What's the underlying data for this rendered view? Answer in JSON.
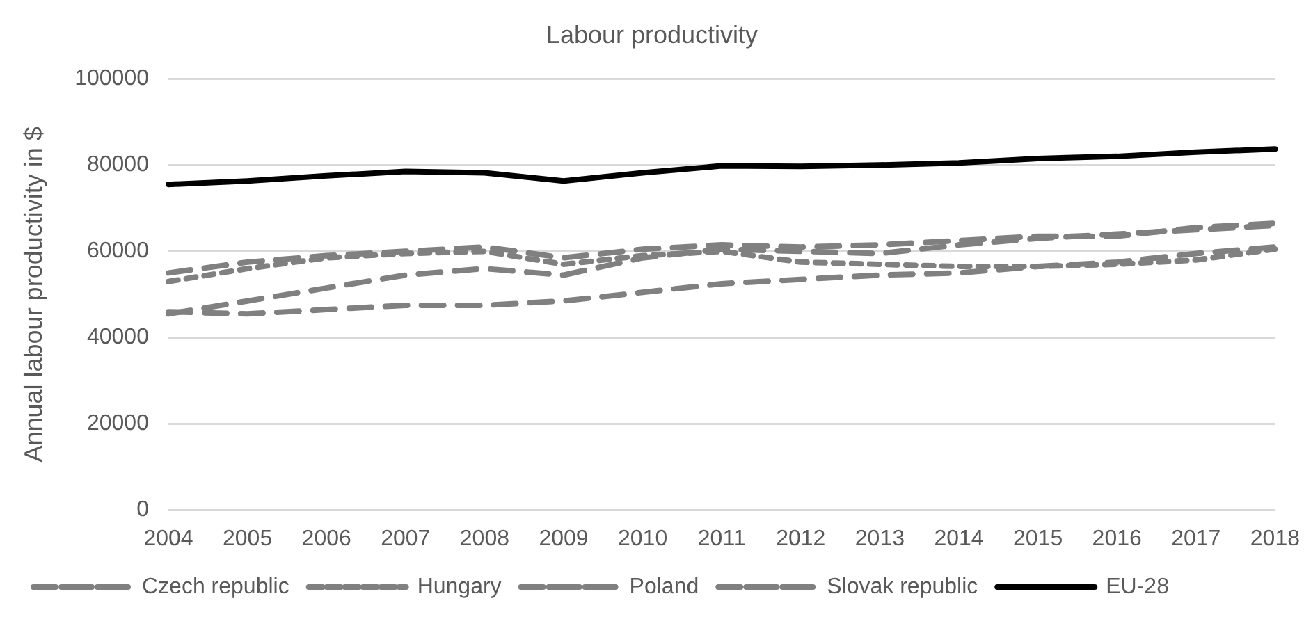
{
  "chart_data": {
    "type": "line",
    "title": "Labour productivity",
    "ylabel": "Annual labour productivity in $",
    "categories": [
      "2004",
      "2005",
      "2006",
      "2007",
      "2008",
      "2009",
      "2010",
      "2011",
      "2012",
      "2013",
      "2014",
      "2015",
      "2016",
      "2017",
      "2018"
    ],
    "series": [
      {
        "name": "Czech republic",
        "color": "#808080",
        "line_style": "dashed",
        "values": [
          55000,
          57500,
          59000,
          60000,
          61000,
          58500,
          60500,
          61500,
          61000,
          61500,
          62500,
          63500,
          63500,
          65500,
          66500
        ]
      },
      {
        "name": "Hungary",
        "color": "#808080",
        "line_style": "dotted",
        "values": [
          53000,
          56000,
          58500,
          59500,
          60000,
          57000,
          59000,
          60000,
          57500,
          57000,
          56500,
          56500,
          57000,
          58000,
          60500
        ]
      },
      {
        "name": "Poland",
        "color": "#808080",
        "line_style": "dashed",
        "values": [
          46000,
          45500,
          46500,
          47500,
          47500,
          48500,
          50500,
          52500,
          53500,
          54500,
          55000,
          56500,
          57500,
          59500,
          61000
        ]
      },
      {
        "name": "Slovak republic",
        "color": "#808080",
        "line_style": "dashed",
        "values": [
          45500,
          48500,
          51500,
          54500,
          56000,
          54500,
          58500,
          60500,
          60000,
          59500,
          61500,
          63000,
          64000,
          65000,
          66000
        ]
      },
      {
        "name": "EU-28",
        "color": "#000000",
        "line_style": "solid",
        "values": [
          75500,
          76300,
          77500,
          78500,
          78200,
          76300,
          78200,
          79800,
          79700,
          80000,
          80500,
          81500,
          82000,
          83000,
          83700
        ]
      }
    ],
    "ylim": [
      0,
      100000
    ],
    "yticks": [
      0,
      20000,
      40000,
      60000,
      80000,
      100000
    ],
    "grid": "y",
    "legend": "bottom",
    "marker": "none"
  }
}
